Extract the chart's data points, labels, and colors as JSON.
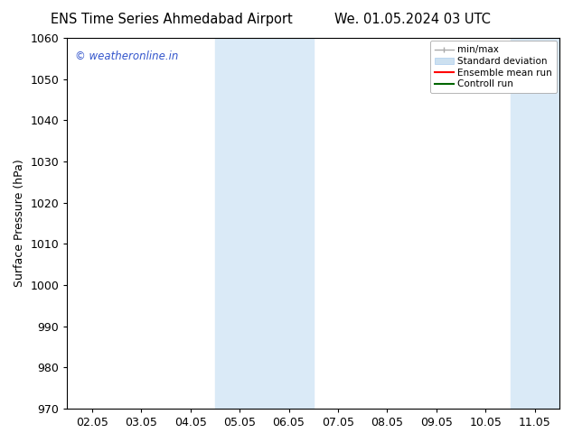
{
  "title_left": "ENS Time Series Ahmedabad Airport",
  "title_right": "We. 01.05.2024 03 UTC",
  "ylabel": "Surface Pressure (hPa)",
  "ylim": [
    970,
    1060
  ],
  "yticks": [
    970,
    980,
    990,
    1000,
    1010,
    1020,
    1030,
    1040,
    1050,
    1060
  ],
  "xtick_labels": [
    "02.05",
    "03.05",
    "04.05",
    "05.05",
    "06.05",
    "07.05",
    "08.05",
    "09.05",
    "10.05",
    "11.05"
  ],
  "x_positions": [
    0,
    1,
    2,
    3,
    4,
    5,
    6,
    7,
    8,
    9
  ],
  "shaded_regions": [
    {
      "xmin": 3,
      "xmax": 5,
      "color": "#daeaf7"
    },
    {
      "xmin": 9,
      "xmax": 10.5,
      "color": "#daeaf7"
    }
  ],
  "background_color": "#ffffff",
  "plot_bg_color": "#ffffff",
  "watermark_text": "© weatheronline.in",
  "watermark_color": "#3355cc",
  "legend_items": [
    {
      "label": "min/max",
      "color": "#aaaaaa",
      "lw": 1.5
    },
    {
      "label": "Standard deviation",
      "color": "#cce0f0",
      "lw": 6
    },
    {
      "label": "Ensemble mean run",
      "color": "#ff0000",
      "lw": 1.5
    },
    {
      "label": "Controll run",
      "color": "#008800",
      "lw": 1.5
    }
  ],
  "border_color": "#000000",
  "tick_color": "#000000",
  "font_size": 9,
  "title_font_size": 10.5
}
